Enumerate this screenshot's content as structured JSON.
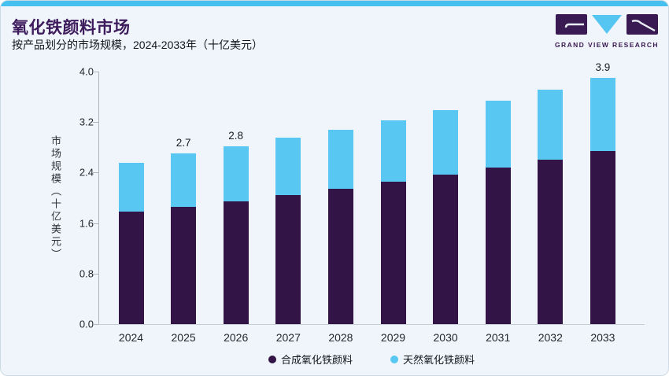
{
  "header": {
    "title": "氧化铁颜料市场",
    "subtitle": "按产品划分的市场规模，2024-2033年（十亿美元）",
    "logo_text": "GRAND VIEW RESEARCH"
  },
  "colors": {
    "accent_bar": "#45c0ef",
    "title_purple": "#3d1b5c",
    "logo_purple": "#3a1a52",
    "logo_blue": "#55c6f1",
    "synthetic_purple": "#331447",
    "natural_blue": "#58c8f2",
    "card_background": "#eff5fa",
    "axis_line": "#aab6c0"
  },
  "chart_data": {
    "type": "bar",
    "stacked": true,
    "title": "氧化铁颜料市场",
    "subtitle": "按产品划分的市场规模，2024-2033年（十亿美元）",
    "categories": [
      "2024",
      "2025",
      "2026",
      "2027",
      "2028",
      "2029",
      "2030",
      "2031",
      "2032",
      "2033"
    ],
    "series": [
      {
        "name": "合成氧化铁颜料",
        "color": "#331447",
        "values": [
          1.78,
          1.86,
          1.95,
          2.05,
          2.15,
          2.26,
          2.37,
          2.48,
          2.6,
          2.74
        ]
      },
      {
        "name": "天然氧化铁颜料",
        "color": "#58c8f2",
        "values": [
          0.78,
          0.84,
          0.87,
          0.9,
          0.93,
          0.97,
          1.02,
          1.06,
          1.11,
          1.16
        ]
      }
    ],
    "total_labels": {
      "2025": "2.7",
      "2026": "2.8",
      "2033": "3.9"
    },
    "xlabel": "",
    "ylabel": "市场规模（十亿美元）",
    "yticks": [
      "0.0",
      "0.8",
      "1.6",
      "2.4",
      "3.2",
      "4.0"
    ],
    "ylim": [
      0.0,
      4.0
    ],
    "grid": false,
    "legend_position": "bottom"
  }
}
